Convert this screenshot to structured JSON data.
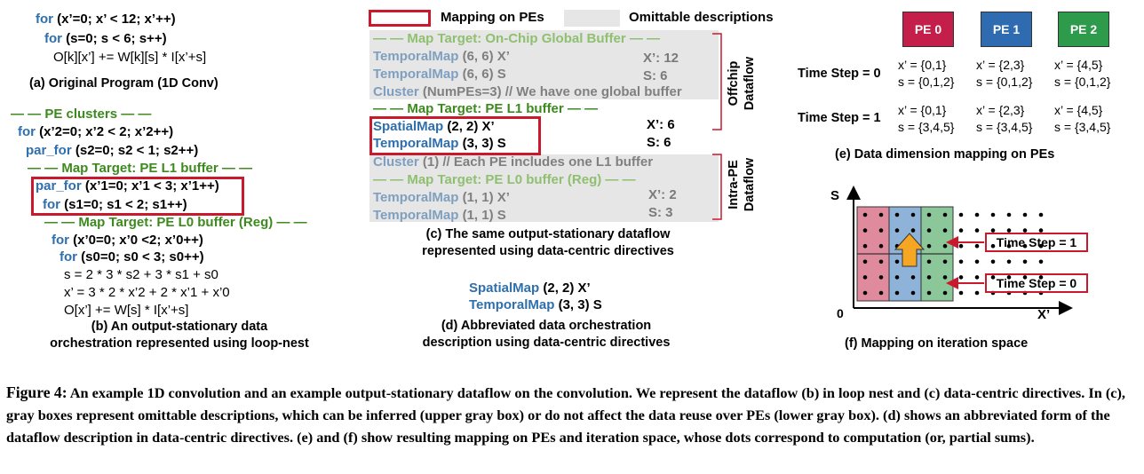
{
  "panel_a": {
    "line1_kw": "for",
    "line1_rest": " (x’=0; x’ < 12; x’++)",
    "line2_kw": "for",
    "line2_rest": " (s=0; s < 6; s++)",
    "line3": "O[k][x’] += W[k][s] * I[x’+s]",
    "caption": "(a) Original Program  (1D Conv)"
  },
  "panel_b": {
    "pe_clusters": "— — PE clusters — —",
    "l1_kw": "for",
    "l1_rest": " (x’2=0; x’2 < 2; x’2++)",
    "l2_kw": "par_for",
    "l2_rest": " (s2=0; s2 < 1; s2++)",
    "map_l1": "— — Map Target: PE L1 buffer — —",
    "l3_kw": "par_for",
    "l3_rest": " (x’1=0; x’1 < 3; x’1++)",
    "l4_kw": "for",
    "l4_rest": " (s1=0; s1 < 2; s1++)",
    "map_l0": "— — Map Target: PE L0 buffer (Reg) — —",
    "l5_kw": "for",
    "l5_rest": " (x’0=0; x’0 <2; x’0++)",
    "l6_kw": "for",
    "l6_rest": " (s0=0; s0 < 3; s0++)",
    "l7": "s = 2 * 3 * s2 + 3 * s1 + s0",
    "l8": "x’ = 3 * 2 * x’2 + 2 * x’1 + x’0",
    "l9": "O[x’] += W[s] * I[x’+s]",
    "caption1": "(b) An output-stationary data",
    "caption2": "orchestration represented using loop-nest"
  },
  "legend": {
    "mapping": "Mapping on PEs",
    "omittable": "Omittable descriptions"
  },
  "panel_c": {
    "map_global": "— — Map Target: On-Chip Global Buffer — —",
    "r1_kw": "TemporalMap",
    "r1_rest": " (6, 6) X’",
    "r1_note": "X’: 12",
    "r2_kw": "TemporalMap",
    "r2_rest": " (6, 6) S",
    "r2_note": "S: 6",
    "r3_kw": "Cluster",
    "r3_rest": " (NumPEs=3) // We have one global buffer",
    "map_l1": "— — Map Target: PE L1 buffer — —",
    "r4_kw": "SpatialMap",
    "r4_rest": " (2, 2) X’",
    "r4_note": "X’: 6",
    "r5_kw": "TemporalMap",
    "r5_rest": " (3, 3) S",
    "r5_note": "S: 6",
    "r6_kw": "Cluster",
    "r6_rest": " (1) // Each PE includes one L1 buffer",
    "map_l0": "— — Map Target: PE L0 buffer (Reg) — —",
    "r7_kw": "TemporalMap",
    "r7_rest": " (1, 1) X’",
    "r7_note": "X’: 2",
    "r8_kw": "TemporalMap",
    "r8_rest": " (1, 1) S",
    "r8_note": "S: 3",
    "offchip1": "Offchip",
    "offchip2": "Dataflow",
    "intrape1": "Intra-PE",
    "intrape2": "Dataflow",
    "caption1": "(c) The same output-stationary dataflow",
    "caption2": "represented using data-centric directives"
  },
  "panel_d": {
    "d1_kw": "SpatialMap",
    "d1_rest": " (2, 2) X’",
    "d2_kw": "TemporalMap",
    "d2_rest": " (3, 3) S",
    "caption1": "(d) Abbreviated data orchestration",
    "caption2": "description using data-centric directives"
  },
  "panel_e": {
    "pes": [
      {
        "label": "PE 0",
        "color": "#c41e4a"
      },
      {
        "label": "PE 1",
        "color": "#2f6bb0"
      },
      {
        "label": "PE 2",
        "color": "#2e9a4c"
      }
    ],
    "t0_label": "Time Step = 0",
    "t0": [
      [
        "x’ = {0,1}",
        "s = {0,1,2}"
      ],
      [
        "x’ = {2,3}",
        "s = {0,1,2}"
      ],
      [
        "x’ = {4,5}",
        "s = {0,1,2}"
      ]
    ],
    "t1_label": "Time Step = 1",
    "t1": [
      [
        "x’ = {0,1}",
        "s = {3,4,5}"
      ],
      [
        "x’ = {2,3}",
        "s = {3,4,5}"
      ],
      [
        "x’ = {4,5}",
        "s = {3,4,5}"
      ]
    ],
    "caption": "(e) Data dimension mapping on PEs"
  },
  "panel_f": {
    "s_label": "S",
    "x_label": "X’",
    "origin": "0",
    "ts1": "Time Step = 1",
    "ts0": "Time Step = 0",
    "caption": "(f) Mapping on iteration space",
    "pe_fill": [
      "#e08a9e",
      "#8fb2d8",
      "#8cc79a"
    ]
  },
  "figure_caption": {
    "label": "Figure 4:",
    "text": " An example 1D convolution and an example output-stationary dataflow on the convolution. We represent the dataflow (b) in loop nest and (c) data-centric directives. In (c), gray boxes represent omittable descriptions, which can be inferred (upper gray box) or do not affect the data reuse over PEs (lower gray box). (d) shows an abbreviated form of the dataflow description in data-centric directives. (e) and (f) show resulting mapping on PEs and iteration space, whose dots correspond to computation (or, partial sums)."
  }
}
